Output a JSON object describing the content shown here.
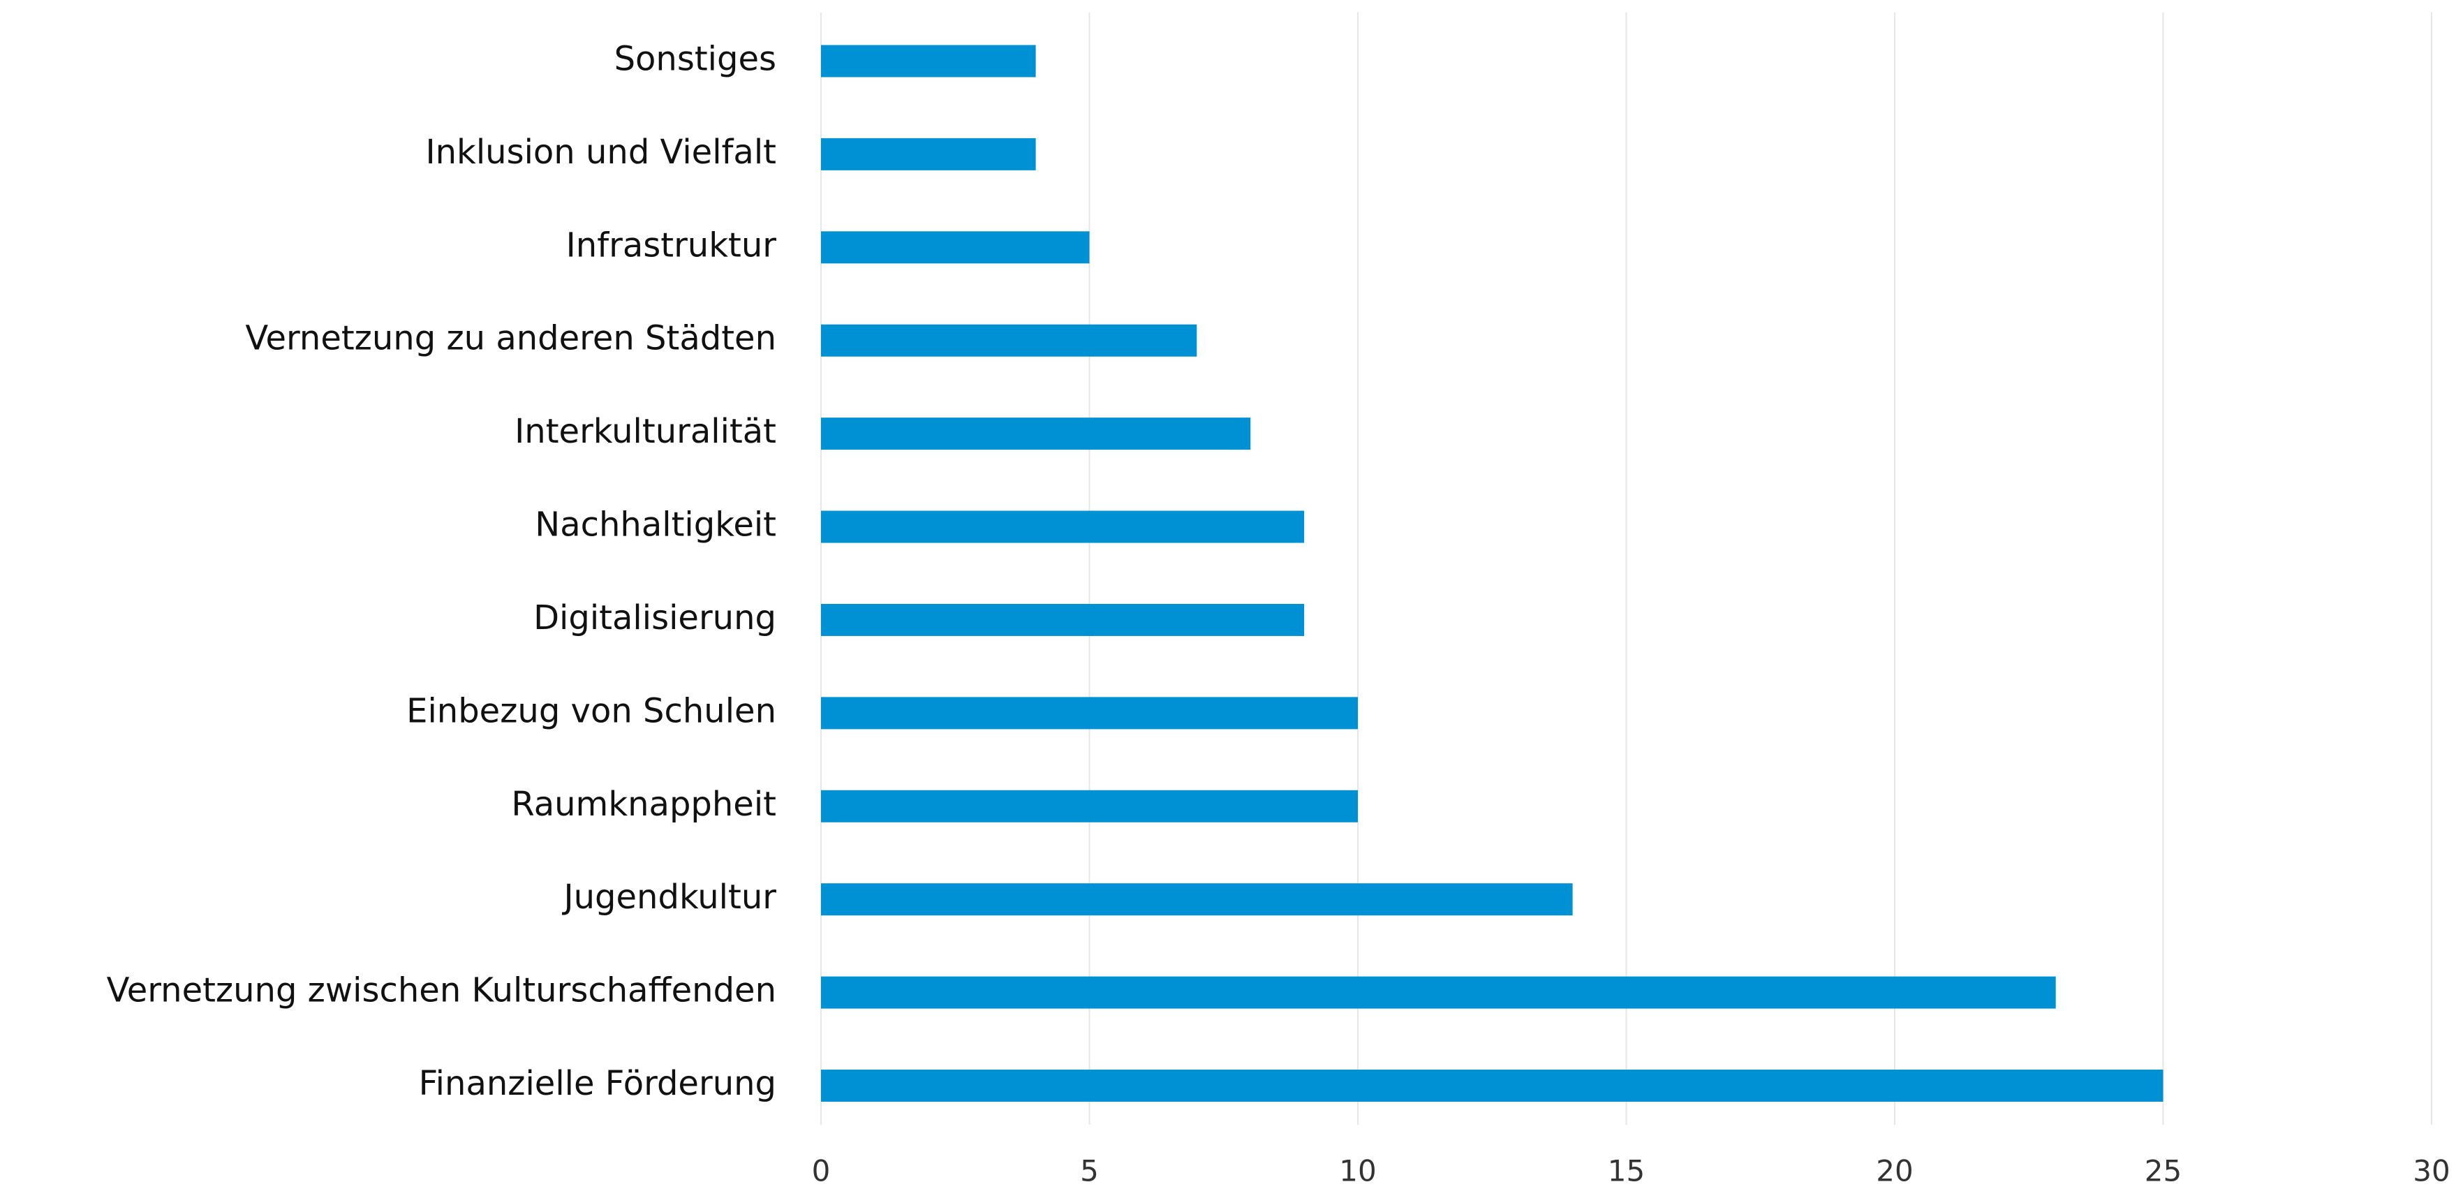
{
  "chart_data": {
    "type": "bar",
    "orientation": "horizontal",
    "categories": [
      "Sonstiges",
      "Inklusion und Vielfalt",
      "Infrastruktur",
      "Vernetzung zu anderen Städten",
      "Interkulturalität",
      "Nachhaltigkeit",
      "Digitalisierung",
      "Einbezug von Schulen",
      "Raumknappheit",
      "Jugendkultur",
      "Vernetzung zwischen Kulturschaffenden",
      "Finanzielle Förderung"
    ],
    "values": [
      4,
      4,
      5,
      7,
      8,
      9,
      9,
      10,
      10,
      14,
      23,
      25
    ],
    "color": "#0091d5",
    "xlim": [
      0,
      30
    ],
    "xticks": [
      0,
      5,
      10,
      15,
      20,
      25,
      30
    ],
    "grid": true
  }
}
